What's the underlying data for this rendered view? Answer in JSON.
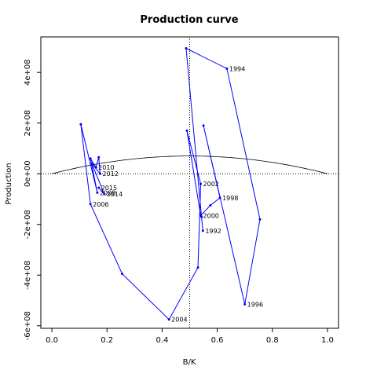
{
  "chart_data": {
    "type": "line",
    "title": "Production curve",
    "xlabel": "B/K",
    "ylabel": "Production",
    "xlim": [
      -0.04,
      1.04
    ],
    "ylim": [
      -610000000,
      540000000
    ],
    "x_ticks": [
      {
        "value": 0.0,
        "label": "0.0"
      },
      {
        "value": 0.2,
        "label": "0.2"
      },
      {
        "value": 0.4,
        "label": "0.4"
      },
      {
        "value": 0.6,
        "label": "0.6"
      },
      {
        "value": 0.8,
        "label": "0.8"
      },
      {
        "value": 1.0,
        "label": "1.0"
      }
    ],
    "y_ticks": [
      {
        "value": -600000000,
        "label": "-6e+08"
      },
      {
        "value": -400000000,
        "label": "-4e+08"
      },
      {
        "value": -200000000,
        "label": "-2e+08"
      },
      {
        "value": 0,
        "label": "0e+00"
      },
      {
        "value": 200000000,
        "label": "2e+08"
      },
      {
        "value": 400000000,
        "label": "4e+08"
      }
    ],
    "reference_lines": {
      "x": 0.5,
      "y": 0
    },
    "curve_peak": 70000000,
    "colors": {
      "series": "#0000ff",
      "curve": "#000000",
      "axes": "#000000"
    },
    "series": [
      {
        "points": [
          {
            "x": 0.548,
            "y": -225000000,
            "label": "1992"
          },
          {
            "x": 0.543,
            "y": -170000000,
            "label": ""
          },
          {
            "x": 0.487,
            "y": 495000000,
            "label": ""
          },
          {
            "x": 0.635,
            "y": 415000000,
            "label": "1994"
          },
          {
            "x": 0.755,
            "y": -180000000,
            "label": ""
          },
          {
            "x": 0.7,
            "y": -515000000,
            "label": "1996"
          },
          {
            "x": 0.55,
            "y": 190000000,
            "label": ""
          },
          {
            "x": 0.61,
            "y": -95000000,
            "label": "1998"
          },
          {
            "x": 0.575,
            "y": -125000000,
            "label": ""
          },
          {
            "x": 0.54,
            "y": -165000000,
            "label": "2000"
          },
          {
            "x": 0.49,
            "y": 170000000,
            "label": ""
          },
          {
            "x": 0.54,
            "y": -40000000,
            "label": "2002"
          },
          {
            "x": 0.53,
            "y": -370000000,
            "label": ""
          },
          {
            "x": 0.425,
            "y": -575000000,
            "label": "2004"
          },
          {
            "x": 0.255,
            "y": -395000000,
            "label": ""
          },
          {
            "x": 0.14,
            "y": -120000000,
            "label": "2006"
          },
          {
            "x": 0.105,
            "y": 195000000,
            "label": ""
          },
          {
            "x": 0.165,
            "y": -75000000,
            "label": "2008"
          },
          {
            "x": 0.14,
            "y": 60000000,
            "label": ""
          },
          {
            "x": 0.16,
            "y": 25000000,
            "label": "2010"
          },
          {
            "x": 0.17,
            "y": 65000000,
            "label": ""
          },
          {
            "x": 0.175,
            "y": 0,
            "label": "2012"
          },
          {
            "x": 0.145,
            "y": 40000000,
            "label": ""
          },
          {
            "x": 0.19,
            "y": -80000000,
            "label": "2014"
          },
          {
            "x": 0.17,
            "y": -55000000,
            "label": "2015"
          }
        ]
      }
    ]
  }
}
